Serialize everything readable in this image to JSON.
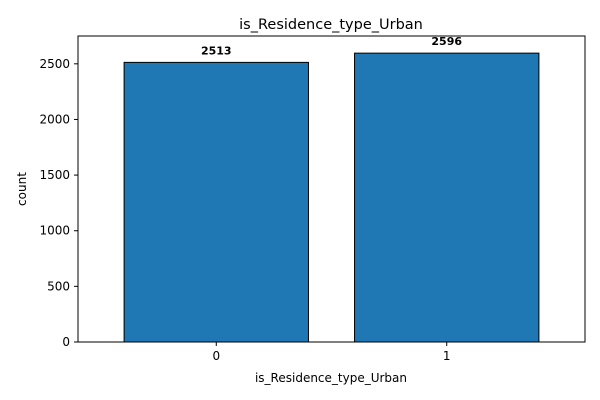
{
  "chart_data": {
    "type": "bar",
    "title": "is_Residence_type_Urban",
    "xlabel": "is_Residence_type_Urban",
    "ylabel": "count",
    "categories": [
      "0",
      "1"
    ],
    "values": [
      2513,
      2596
    ],
    "value_labels": [
      "2513",
      "2596"
    ],
    "ylim": [
      0,
      2750
    ],
    "yticks": [
      0,
      500,
      1000,
      1500,
      2000,
      2500
    ],
    "ytick_labels": [
      "0",
      "500",
      "1000",
      "1500",
      "2000",
      "2500"
    ],
    "bar_color": "#1f77b4",
    "edge_color": "#000000",
    "grid": false,
    "legend": false
  }
}
